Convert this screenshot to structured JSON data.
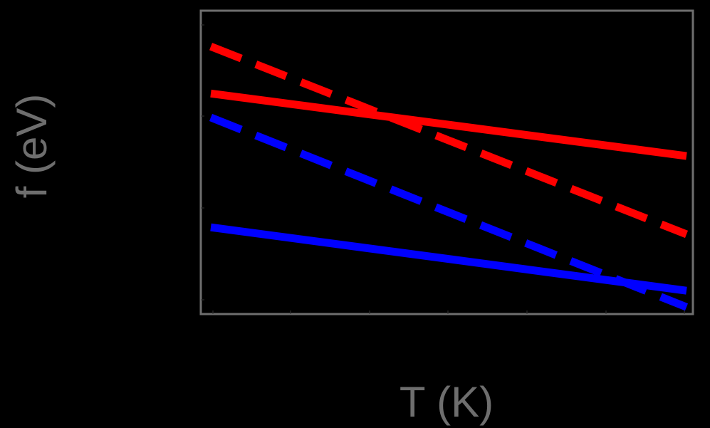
{
  "chart_data": {
    "type": "line",
    "title": "",
    "xlabel": "T (K)",
    "ylabel": "f (eV)",
    "x_ticks": [
      "",
      "",
      "",
      "",
      "",
      "",
      ""
    ],
    "y_ticks": [
      "",
      "",
      "",
      ""
    ],
    "tick_labels_visible": false,
    "grid": false,
    "legend": null,
    "xlim": [
      0,
      1
    ],
    "ylim": [
      0,
      1
    ],
    "series": [
      {
        "name": "red-solid",
        "color": "#ff0000",
        "style": "solid",
        "x": [
          0,
          1
        ],
        "y": [
          0.727,
          0.521
        ]
      },
      {
        "name": "red-dashed",
        "color": "#ff0000",
        "style": "dashed",
        "x": [
          0,
          1
        ],
        "y": [
          0.882,
          0.263
        ]
      },
      {
        "name": "blue-dashed",
        "color": "#0000ff",
        "style": "dashed",
        "x": [
          0,
          1
        ],
        "y": [
          0.648,
          0.023
        ]
      },
      {
        "name": "blue-solid",
        "color": "#0000ff",
        "style": "solid",
        "x": [
          0,
          1
        ],
        "y": [
          0.286,
          0.077
        ]
      }
    ]
  },
  "colors": {
    "background": "#000000",
    "frame": "#6e6e6e",
    "label": "#6e6e6e"
  }
}
